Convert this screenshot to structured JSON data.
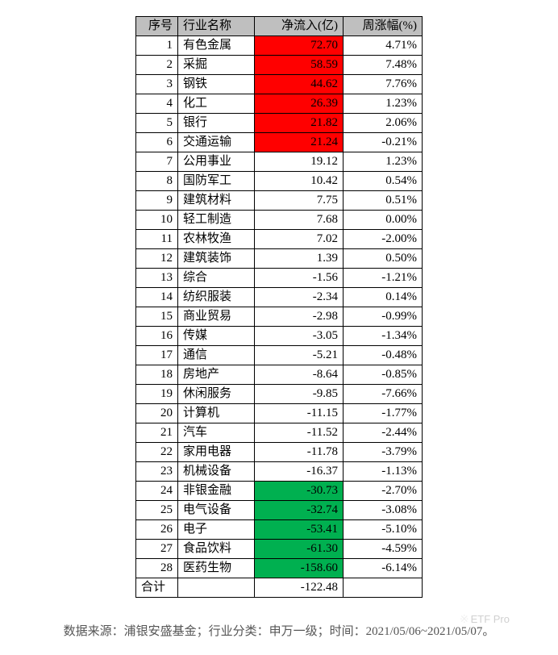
{
  "table": {
    "columns": [
      "序号",
      "行业名称",
      "净流入(亿)",
      "周涨幅(%)"
    ],
    "header_bg": "#bfbfbf",
    "highlight_red": "#ff0000",
    "highlight_green": "#00b050",
    "border_color": "#000000",
    "rows": [
      {
        "idx": "1",
        "name": "有色金属",
        "inflow": "72.70",
        "change": "4.71%",
        "hl": "red"
      },
      {
        "idx": "2",
        "name": "采掘",
        "inflow": "58.59",
        "change": "7.48%",
        "hl": "red"
      },
      {
        "idx": "3",
        "name": "钢铁",
        "inflow": "44.62",
        "change": "7.76%",
        "hl": "red"
      },
      {
        "idx": "4",
        "name": "化工",
        "inflow": "26.39",
        "change": "1.23%",
        "hl": "red"
      },
      {
        "idx": "5",
        "name": "银行",
        "inflow": "21.82",
        "change": "2.06%",
        "hl": "red"
      },
      {
        "idx": "6",
        "name": "交通运输",
        "inflow": "21.24",
        "change": "-0.21%",
        "hl": "red"
      },
      {
        "idx": "7",
        "name": "公用事业",
        "inflow": "19.12",
        "change": "1.23%",
        "hl": ""
      },
      {
        "idx": "8",
        "name": "国防军工",
        "inflow": "10.42",
        "change": "0.54%",
        "hl": ""
      },
      {
        "idx": "9",
        "name": "建筑材料",
        "inflow": "7.75",
        "change": "0.51%",
        "hl": ""
      },
      {
        "idx": "10",
        "name": "轻工制造",
        "inflow": "7.68",
        "change": "0.00%",
        "hl": ""
      },
      {
        "idx": "11",
        "name": "农林牧渔",
        "inflow": "7.02",
        "change": "-2.00%",
        "hl": ""
      },
      {
        "idx": "12",
        "name": "建筑装饰",
        "inflow": "1.39",
        "change": "0.50%",
        "hl": ""
      },
      {
        "idx": "13",
        "name": "综合",
        "inflow": "-1.56",
        "change": "-1.21%",
        "hl": ""
      },
      {
        "idx": "14",
        "name": "纺织服装",
        "inflow": "-2.34",
        "change": "0.14%",
        "hl": ""
      },
      {
        "idx": "15",
        "name": "商业贸易",
        "inflow": "-2.98",
        "change": "-0.99%",
        "hl": ""
      },
      {
        "idx": "16",
        "name": "传媒",
        "inflow": "-3.05",
        "change": "-1.34%",
        "hl": ""
      },
      {
        "idx": "17",
        "name": "通信",
        "inflow": "-5.21",
        "change": "-0.48%",
        "hl": ""
      },
      {
        "idx": "18",
        "name": "房地产",
        "inflow": "-8.64",
        "change": "-0.85%",
        "hl": ""
      },
      {
        "idx": "19",
        "name": "休闲服务",
        "inflow": "-9.85",
        "change": "-7.66%",
        "hl": ""
      },
      {
        "idx": "20",
        "name": "计算机",
        "inflow": "-11.15",
        "change": "-1.77%",
        "hl": ""
      },
      {
        "idx": "21",
        "name": "汽车",
        "inflow": "-11.52",
        "change": "-2.44%",
        "hl": ""
      },
      {
        "idx": "22",
        "name": "家用电器",
        "inflow": "-11.78",
        "change": "-3.79%",
        "hl": ""
      },
      {
        "idx": "23",
        "name": "机械设备",
        "inflow": "-16.37",
        "change": "-1.13%",
        "hl": ""
      },
      {
        "idx": "24",
        "name": "非银金融",
        "inflow": "-30.73",
        "change": "-2.70%",
        "hl": "green"
      },
      {
        "idx": "25",
        "name": "电气设备",
        "inflow": "-32.74",
        "change": "-3.08%",
        "hl": "green"
      },
      {
        "idx": "26",
        "name": "电子",
        "inflow": "-53.41",
        "change": "-5.10%",
        "hl": "green"
      },
      {
        "idx": "27",
        "name": "食品饮料",
        "inflow": "-61.30",
        "change": "-4.59%",
        "hl": "green"
      },
      {
        "idx": "28",
        "name": "医药生物",
        "inflow": "-158.60",
        "change": "-6.14%",
        "hl": "green"
      }
    ],
    "total": {
      "label": "合计",
      "inflow": "-122.48",
      "change": ""
    }
  },
  "footer": {
    "text": "数据来源：浦银安盛基金；行业分类：申万一级；时间：2021/05/06~2021/05/07。",
    "watermark": "ETF Pro"
  }
}
